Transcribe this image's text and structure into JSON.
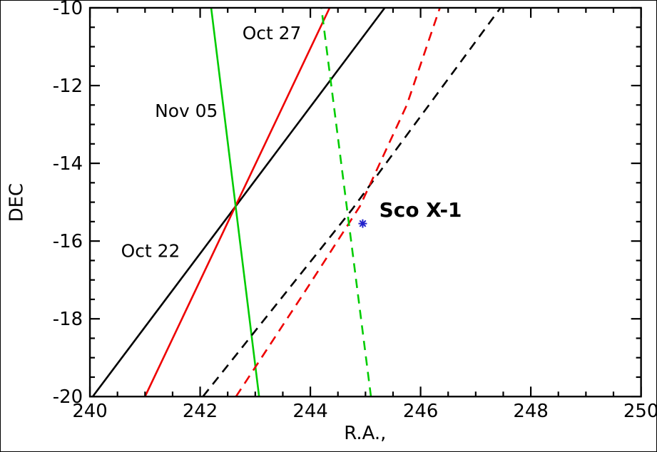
{
  "chart_data": {
    "type": "line",
    "title": "",
    "xlabel": "R.A.,",
    "ylabel": "DEC",
    "xlim": [
      240,
      250
    ],
    "ylim": [
      -20,
      -10
    ],
    "xticks": [
      240,
      242,
      244,
      246,
      248,
      250
    ],
    "yticks": [
      -10,
      -12,
      -14,
      -16,
      -18,
      -20
    ],
    "x_minor_step": 0.5,
    "y_minor_step": 0.5,
    "grid": false,
    "legend_position": "none",
    "frame_color": "#000000",
    "series": [
      {
        "name": "Oct 22 solid",
        "color": "#000000",
        "dash": "solid",
        "points": [
          [
            240.05,
            -20.0
          ],
          [
            245.35,
            -10.0
          ]
        ]
      },
      {
        "name": "Oct 27 solid",
        "color": "#ee0000",
        "dash": "solid",
        "points": [
          [
            241.0,
            -20.0
          ],
          [
            244.35,
            -10.0
          ]
        ]
      },
      {
        "name": "Nov 05 solid",
        "color": "#00cc00",
        "dash": "solid",
        "points": [
          [
            243.07,
            -20.0
          ],
          [
            242.2,
            -10.0
          ]
        ]
      },
      {
        "name": "Oct 22 dashed",
        "color": "#000000",
        "dash": "dashed",
        "points": [
          [
            242.05,
            -20.0
          ],
          [
            244.75,
            -15.2
          ],
          [
            247.45,
            -10.0
          ]
        ]
      },
      {
        "name": "Oct 27 dashed",
        "color": "#ee0000",
        "dash": "dashed",
        "points": [
          [
            242.65,
            -20.0
          ],
          [
            243.9,
            -17.3
          ],
          [
            244.9,
            -15.1
          ],
          [
            245.75,
            -12.5
          ],
          [
            246.35,
            -10.0
          ]
        ]
      },
      {
        "name": "Nov 05 dashed",
        "color": "#00cc00",
        "dash": "dashed",
        "points": [
          [
            245.1,
            -20.0
          ],
          [
            244.2,
            -10.0
          ]
        ]
      }
    ],
    "marker": {
      "label": "Sco X-1",
      "x": 244.95,
      "y": -15.55,
      "color": "#2222cc",
      "symbol": "asterisk"
    },
    "annotations": [
      {
        "text": "Oct 27",
        "x": 243.3,
        "y": -10.65,
        "color": "#ee0000",
        "size": 25,
        "weight": "normal"
      },
      {
        "text": "Nov 05",
        "x": 241.75,
        "y": -12.65,
        "color": "#00cc00",
        "size": 25,
        "weight": "normal"
      },
      {
        "text": "Oct 22",
        "x": 241.1,
        "y": -16.25,
        "color": "#000000",
        "size": 25,
        "weight": "normal"
      },
      {
        "text": "Sco X-1",
        "x": 246.0,
        "y": -15.2,
        "color": "#000000",
        "size": 28,
        "weight": "bold"
      }
    ]
  }
}
